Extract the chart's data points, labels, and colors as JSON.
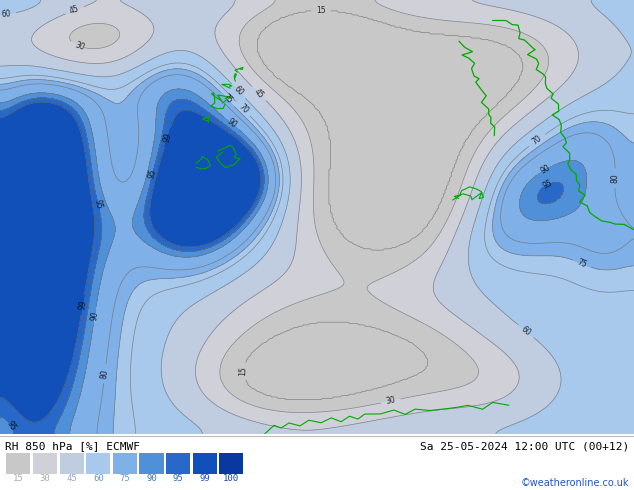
{
  "title_left": "RH 850 hPa [%] ECMWF",
  "title_right": "Sa 25-05-2024 12:00 UTC (00+12)",
  "credit": "©weatheronline.co.uk",
  "colorbar_labels": [
    "15",
    "30",
    "45",
    "60",
    "75",
    "90",
    "95",
    "99",
    "100"
  ],
  "levels": [
    15,
    30,
    45,
    60,
    75,
    90,
    95,
    99,
    100
  ],
  "fill_colors": [
    "#c8c8c8",
    "#d0d0d8",
    "#c0cce0",
    "#a8c8ec",
    "#80b0e8",
    "#5090d8",
    "#2868c8",
    "#1050b8",
    "#0838a0"
  ],
  "contour_color": "#707070",
  "contour_levels": [
    15,
    30,
    45,
    60,
    70,
    75,
    80,
    90,
    95,
    99
  ],
  "bg_color": "#ffffff",
  "map_bg": "#c8c8c8",
  "figsize": [
    6.34,
    4.9
  ],
  "dpi": 100,
  "green_color": "#00aa00",
  "label_color_light": "#aaaaaa",
  "label_color_mid": "#6699cc",
  "label_color_dark": "#3366bb",
  "credit_color": "#2255cc"
}
